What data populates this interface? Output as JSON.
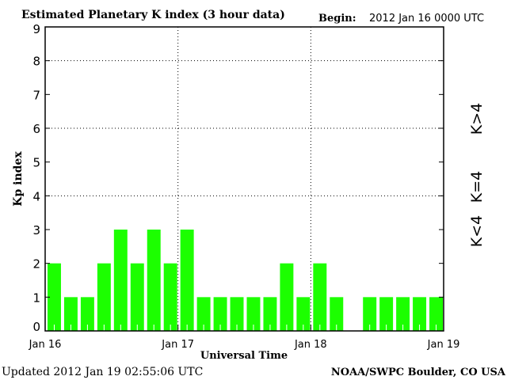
{
  "chart_data": {
    "type": "bar",
    "title": "Estimated Planetary K index (3 hour data)",
    "begin_label": "Begin:",
    "begin_value": "2012 Jan 16 0000 UTC",
    "xlabel": "Universal Time",
    "ylabel": "Kp index",
    "ylim": [
      0,
      9
    ],
    "yticks": [
      "0",
      "1",
      "2",
      "3",
      "4",
      "5",
      "6",
      "7",
      "8",
      "9"
    ],
    "xticks": [
      "Jan 16",
      "Jan 17",
      "Jan 18",
      "Jan 19"
    ],
    "grid": "dotted at y=4, y=6, y=8 and day boundaries",
    "interval_hours": 3,
    "values": [
      2,
      1,
      1,
      2,
      3,
      2,
      3,
      2,
      3,
      1,
      1,
      1,
      1,
      1,
      2,
      1,
      2,
      1,
      null,
      1,
      1,
      1,
      1,
      1
    ],
    "bar_color": "#1cff00",
    "legend": [
      {
        "label": "K>4",
        "color": "#ff2000"
      },
      {
        "label": "K=4",
        "color": "#ffd000"
      },
      {
        "label": "K<4",
        "color": "#1cff00"
      }
    ]
  },
  "footer": {
    "updated": "Updated 2012 Jan 19 02:55:06 UTC",
    "source": "NOAA/SWPC Boulder, CO USA"
  }
}
